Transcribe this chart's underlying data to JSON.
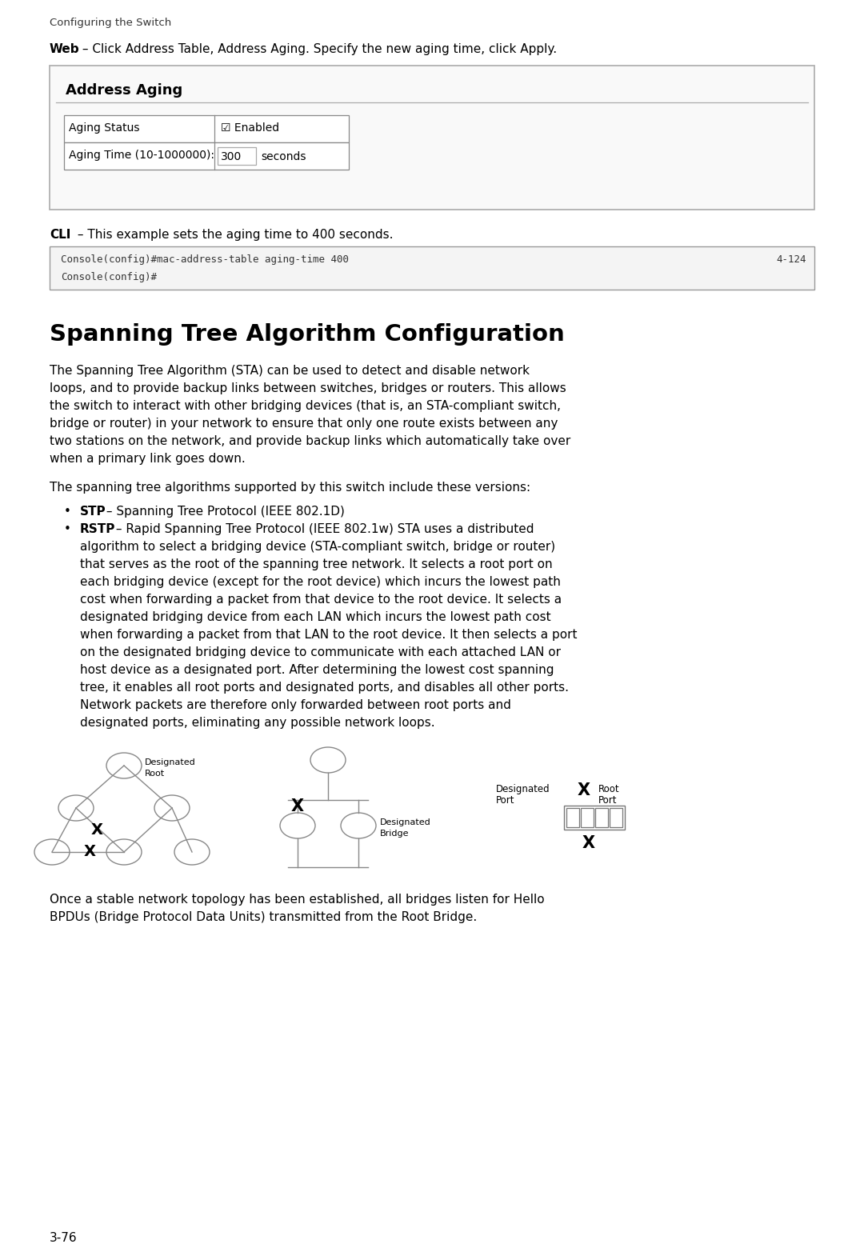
{
  "bg_color": "#ffffff",
  "header_text": "Configuring the Switch",
  "web_bold": "Web",
  "web_rest": " – Click Address Table, Address Aging. Specify the new aging time, click Apply.",
  "address_aging_title": "Address Aging",
  "row1_label": "Aging Status",
  "row1_value": "☑ Enabled",
  "row2_label": "Aging Time (10-1000000):",
  "row2_value": "300",
  "row2_unit": "seconds",
  "cli_bold": "CLI",
  "cli_rest": " – This example sets the aging time to 400 seconds.",
  "cli_code_line1": "Console(config)#mac-address-table aging-time 400",
  "cli_code_ref": "4-124",
  "cli_code_line2": "Console(config)#",
  "section_title": "Spanning Tree Algorithm Configuration",
  "para1_lines": [
    "The Spanning Tree Algorithm (STA) can be used to detect and disable network",
    "loops, and to provide backup links between switches, bridges or routers. This allows",
    "the switch to interact with other bridging devices (that is, an STA-compliant switch,",
    "bridge or router) in your network to ensure that only one route exists between any",
    "two stations on the network, and provide backup links which automatically take over",
    "when a primary link goes down."
  ],
  "para2": "The spanning tree algorithms supported by this switch include these versions:",
  "bullet1_bold": "STP",
  "bullet1_rest": " – Spanning Tree Protocol (IEEE 802.1D)",
  "bullet2_bold": "RSTP",
  "bullet2_line0": " – Rapid Spanning Tree Protocol (IEEE 802.1w) STA uses a distributed",
  "bullet2_lines": [
    "algorithm to select a bridging device (STA-compliant switch, bridge or router)",
    "that serves as the root of the spanning tree network. It selects a root port on",
    "each bridging device (except for the root device) which incurs the lowest path",
    "cost when forwarding a packet from that device to the root device. It selects a",
    "designated bridging device from each LAN which incurs the lowest path cost",
    "when forwarding a packet from that LAN to the root device. It then selects a port",
    "on the designated bridging device to communicate with each attached LAN or",
    "host device as a designated port. After determining the lowest cost spanning",
    "tree, it enables all root ports and designated ports, and disables all other ports.",
    "Network packets are therefore only forwarded between root ports and",
    "designated ports, eliminating any possible network loops."
  ],
  "bottom_para_lines": [
    "Once a stable network topology has been established, all bridges listen for Hello",
    "BPDUs (Bridge Protocol Data Units) transmitted from the Root Bridge."
  ],
  "page_num": "3-76"
}
